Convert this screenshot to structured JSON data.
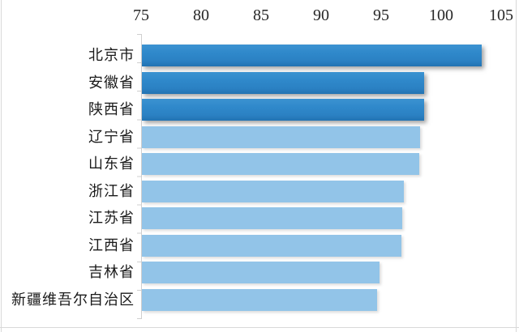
{
  "chart_data": {
    "type": "bar",
    "orientation": "horizontal",
    "title": "",
    "xlabel": "",
    "ylabel": "",
    "axis_side": "top",
    "xlim": [
      75,
      105
    ],
    "x_ticks": [
      "75",
      "80",
      "85",
      "90",
      "95",
      "100",
      "105"
    ],
    "x_tick_values": [
      75,
      80,
      85,
      90,
      95,
      100,
      105
    ],
    "categories": [
      "北京市",
      "安徽省",
      "陕西省",
      "辽宁省",
      "山东省",
      "浙江省",
      "江苏省",
      "江西省",
      "吉林省",
      "新疆维吾尔自治区"
    ],
    "values": [
      103.3,
      98.5,
      98.5,
      98.2,
      98.1,
      96.8,
      96.7,
      96.6,
      94.8,
      94.6
    ],
    "highlighted": [
      true,
      true,
      true,
      false,
      false,
      false,
      false,
      false,
      false,
      false
    ],
    "grid": false,
    "legend": null,
    "colors": {
      "highlight_bar": "#2e86c9",
      "normal_bar": "#92c4e8",
      "axis_line": "#cfcfcf",
      "frame_line": "#d9d9d9",
      "text": "#1a1a1a"
    }
  }
}
